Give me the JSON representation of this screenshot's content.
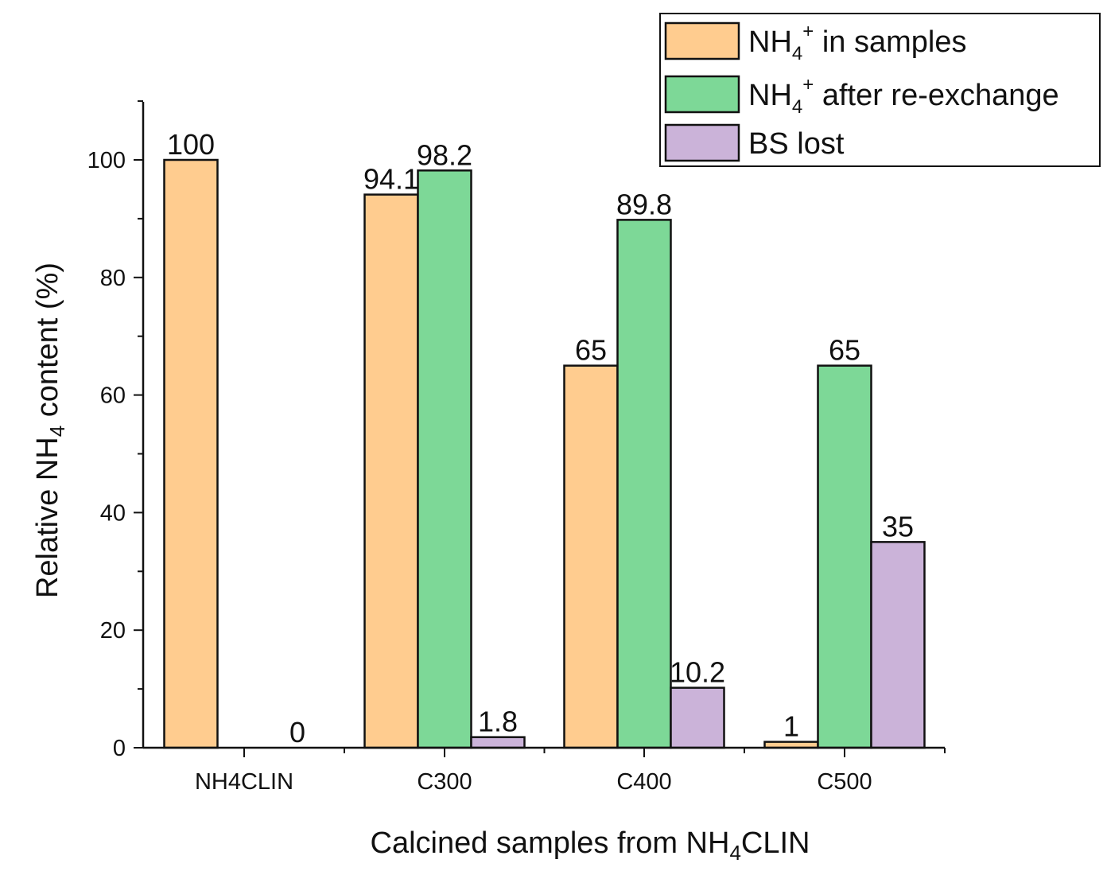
{
  "chart_data": {
    "type": "bar",
    "title": "",
    "categories": [
      "NH4CLIN",
      "C300",
      "C400",
      "C500"
    ],
    "series": [
      {
        "name": "NH4+ in samples",
        "color": "#FFCC8F",
        "values": [
          100,
          94.1,
          65,
          1
        ],
        "labels": [
          "100",
          "94.1",
          "65",
          "1"
        ]
      },
      {
        "name": "NH4+ after re-exchange",
        "color": "#7DD897",
        "values": [
          null,
          98.2,
          89.8,
          65
        ],
        "labels": [
          "",
          "98.2",
          "89.8",
          "65"
        ]
      },
      {
        "name": "BS lost",
        "color": "#CBB3D9",
        "values": [
          0,
          1.8,
          10.2,
          35
        ],
        "labels": [
          "0",
          "1.8",
          "10.2",
          "35"
        ]
      }
    ],
    "legend": {
      "position": "top-right",
      "entries": [
        {
          "base": "NH",
          "sub": "4",
          "sup": "+",
          "rest": " in samples"
        },
        {
          "base": "NH",
          "sub": "4",
          "sup": "+",
          "rest": " after re-exchange"
        },
        {
          "base": "BS lost",
          "sub": "",
          "sup": "",
          "rest": ""
        }
      ]
    },
    "xlabel": {
      "pre": "Calcined samples from NH",
      "sub": "4",
      "post": "CLIN"
    },
    "ylabel": {
      "pre": "Relative NH",
      "sub": "4",
      "post": " content (%)"
    },
    "ylim": [
      0,
      110
    ],
    "yticks": [
      0,
      20,
      40,
      60,
      80,
      100
    ],
    "grid": false
  }
}
